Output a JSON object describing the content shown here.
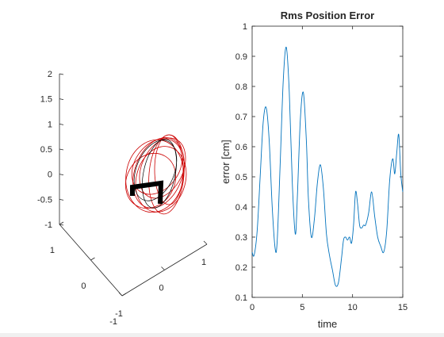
{
  "chart_data": [
    {
      "type": "3d-line",
      "title": "",
      "xlabel": "",
      "ylabel": "",
      "zlabel": "",
      "axes": {
        "x": {
          "range": [
            -1,
            1
          ],
          "ticks": [
            "-1",
            "0",
            "1"
          ]
        },
        "y": {
          "range": [
            -1,
            1
          ],
          "ticks": [
            "-1",
            "0",
            "1"
          ]
        },
        "z": {
          "range": [
            -1,
            2
          ],
          "ticks": [
            "2",
            "1.5",
            "1",
            "0.5",
            "0",
            "-0.5",
            "-1"
          ]
        }
      },
      "view": "default 3-D perspective, box hidden",
      "series": [
        {
          "color": "#cc0000",
          "description_visible": "red elliptical trajectory loops"
        },
        {
          "color": "#000000",
          "description_visible": "black reference trajectory loops"
        },
        {
          "color": "#000000",
          "description_visible": "thick black two-link arm shape"
        }
      ]
    },
    {
      "type": "line",
      "title": "Rms Position Error",
      "xlabel": "time",
      "ylabel": "error [cm]",
      "xlim": [
        0,
        15
      ],
      "ylim": [
        0.1,
        1
      ],
      "x_ticks": [
        "0",
        "5",
        "10",
        "15"
      ],
      "y_ticks": [
        "0.1",
        "0.2",
        "0.3",
        "0.4",
        "0.5",
        "0.6",
        "0.7",
        "0.8",
        "0.9",
        "1"
      ],
      "grid": false,
      "line_color": "#0072bd",
      "series": [
        {
          "x": [
            0,
            0.2,
            0.5,
            0.8,
            1.1,
            1.4,
            1.7,
            2.0,
            2.3,
            2.5,
            2.8,
            3.1,
            3.4,
            3.7,
            4.0,
            4.3,
            4.5,
            4.8,
            5.1,
            5.4,
            5.6,
            5.9,
            6.2,
            6.5,
            6.8,
            7.1,
            7.4,
            7.7,
            8.0,
            8.3,
            8.6,
            8.9,
            9.1,
            9.3,
            9.5,
            9.7,
            9.9,
            10.1,
            10.3,
            10.5,
            10.7,
            10.9,
            11.1,
            11.3,
            11.6,
            11.9,
            12.2,
            12.5,
            12.8,
            13.1,
            13.4,
            13.7,
            14.0,
            14.2,
            14.4,
            14.6,
            14.8,
            15.0
          ],
          "y": [
            0.25,
            0.24,
            0.32,
            0.5,
            0.68,
            0.73,
            0.62,
            0.4,
            0.26,
            0.29,
            0.55,
            0.82,
            0.93,
            0.78,
            0.48,
            0.31,
            0.43,
            0.69,
            0.78,
            0.62,
            0.43,
            0.3,
            0.36,
            0.48,
            0.54,
            0.46,
            0.31,
            0.24,
            0.19,
            0.14,
            0.15,
            0.23,
            0.29,
            0.3,
            0.29,
            0.3,
            0.28,
            0.34,
            0.45,
            0.41,
            0.34,
            0.33,
            0.34,
            0.34,
            0.38,
            0.45,
            0.37,
            0.3,
            0.27,
            0.25,
            0.32,
            0.49,
            0.56,
            0.51,
            0.58,
            0.64,
            0.51,
            0.45
          ]
        }
      ]
    }
  ]
}
